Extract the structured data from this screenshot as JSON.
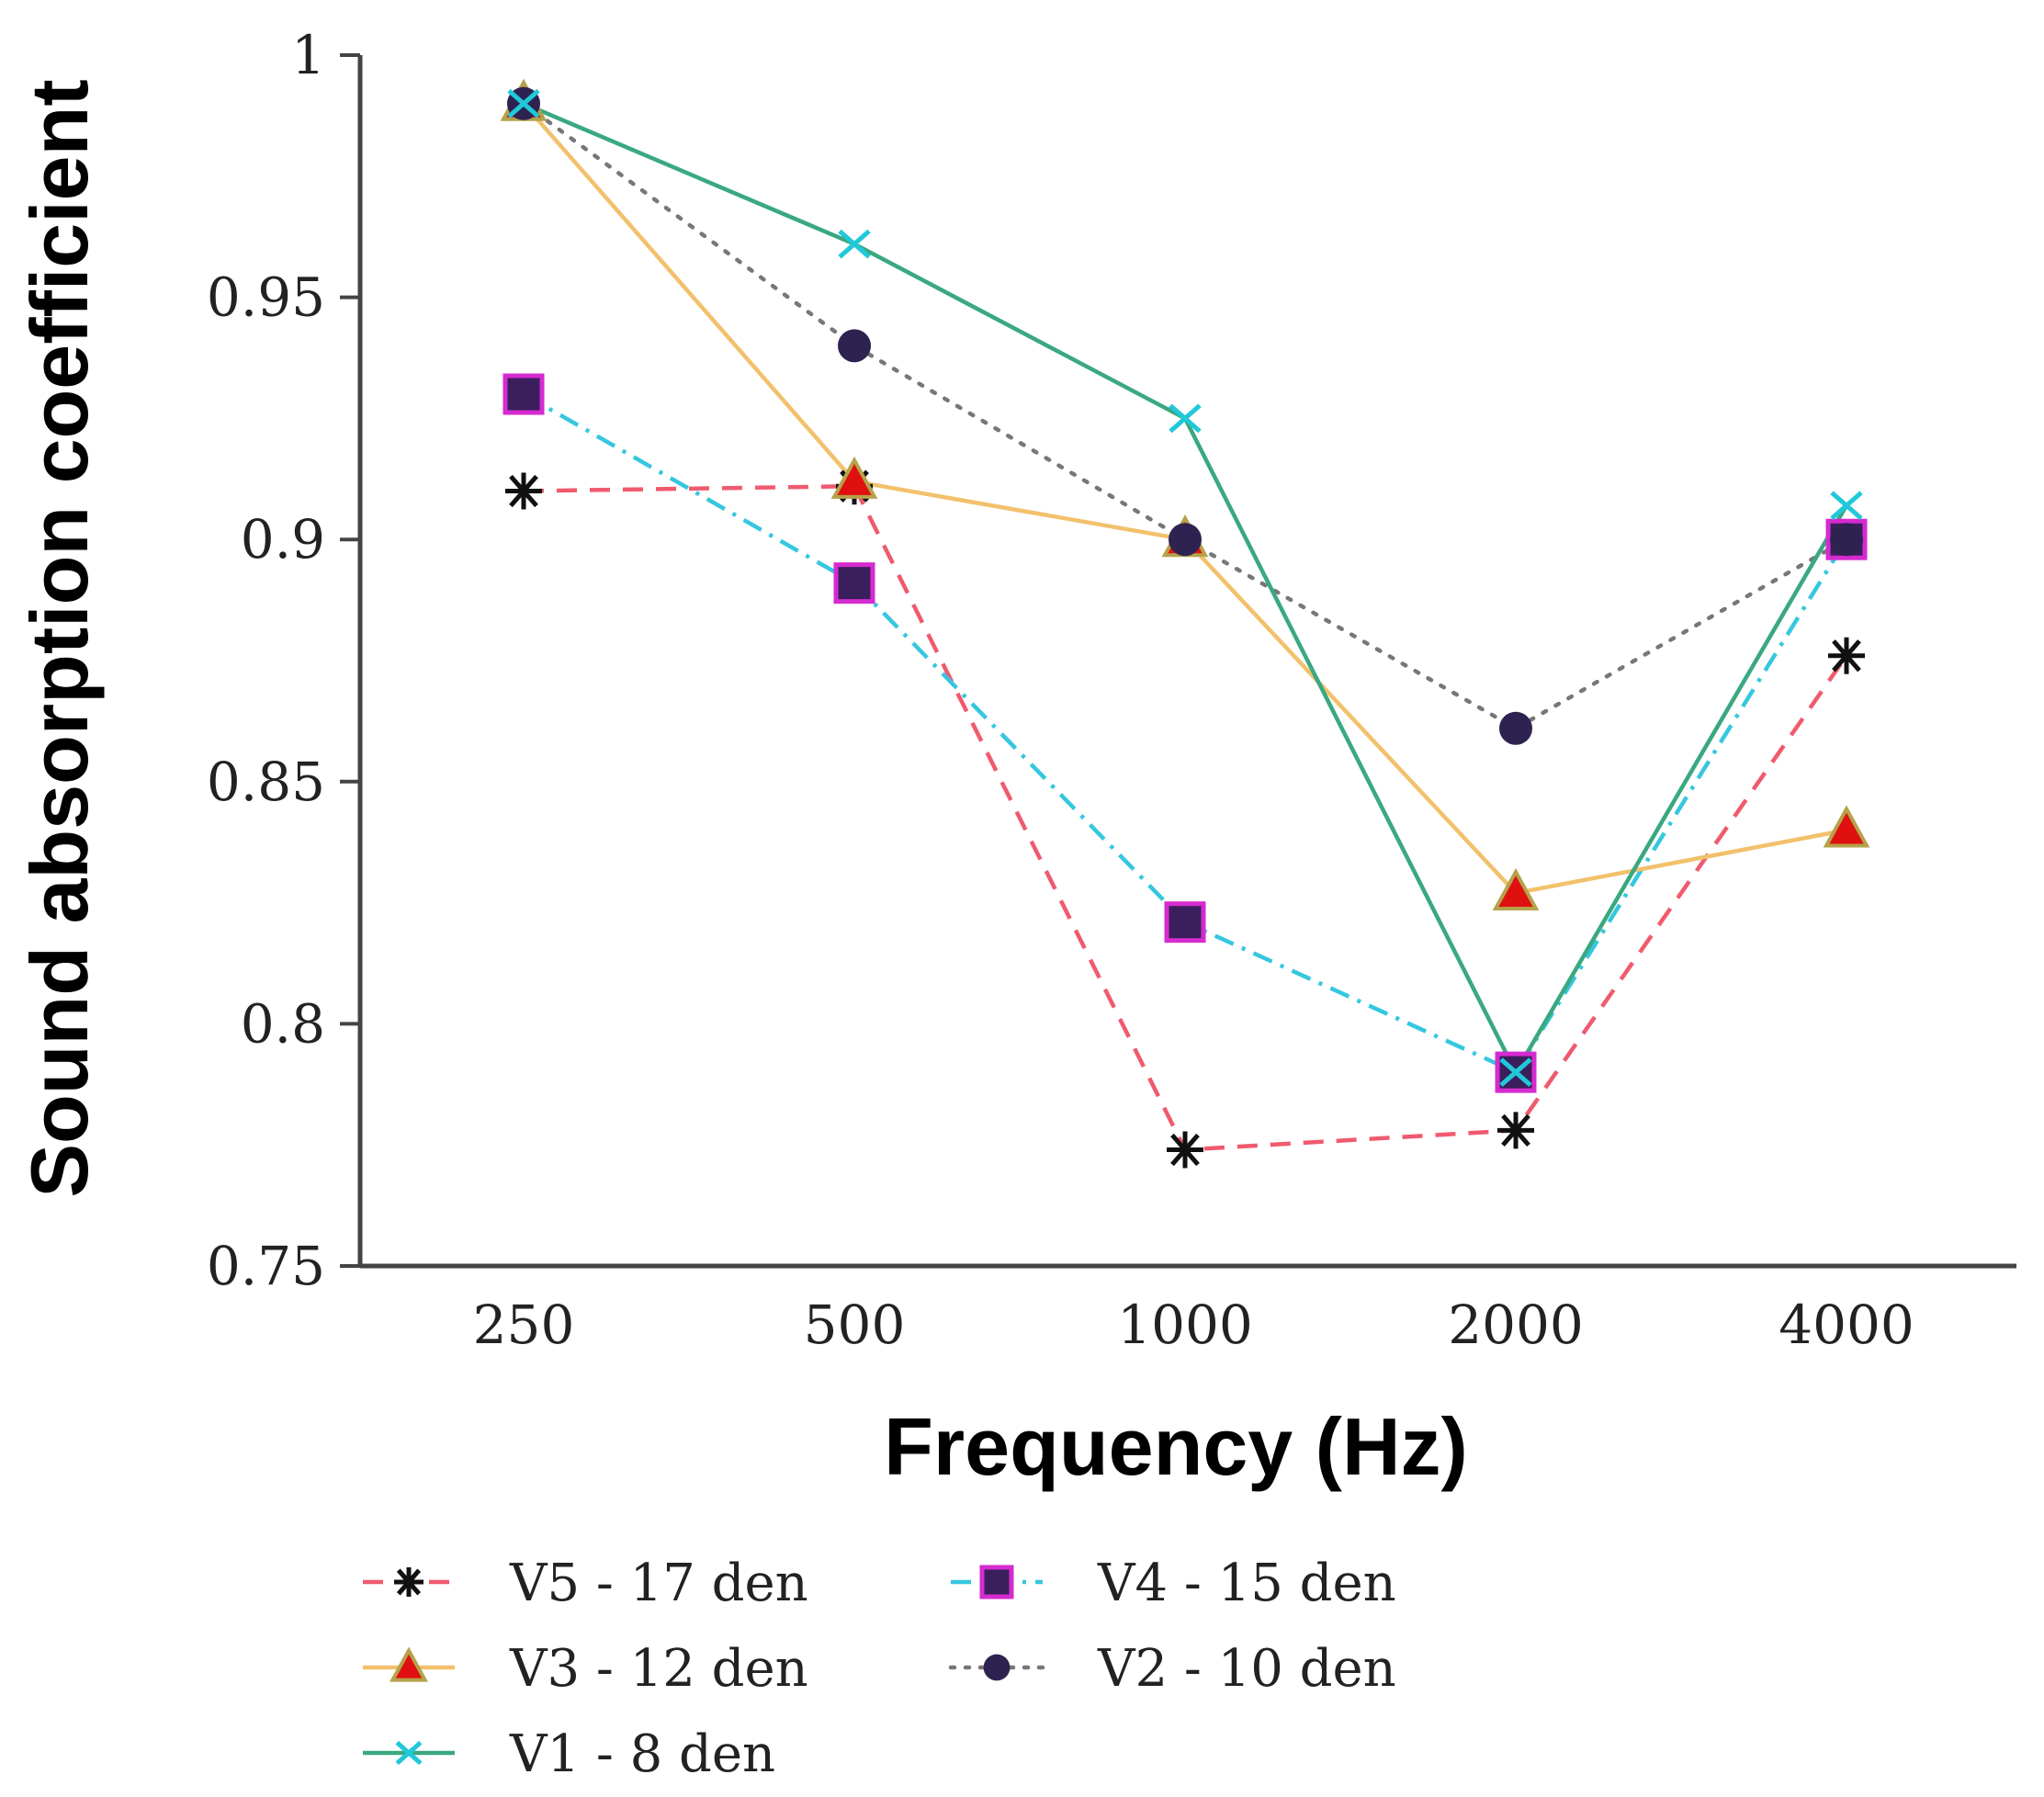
{
  "chart_data": {
    "type": "line",
    "title": "",
    "xlabel": "Frequency (Hz)",
    "ylabel": "Sound absorption coefficient",
    "categories": [
      "250",
      "500",
      "1000",
      "2000",
      "4000"
    ],
    "ylim": [
      0.75,
      1
    ],
    "yticks": [
      1,
      0.95,
      0.9,
      0.85,
      0.8,
      0.75
    ],
    "ytick_labels": [
      "1",
      "0.95",
      "0.9",
      "0.85",
      "0.8",
      "0.75"
    ],
    "legend_position": "bottom",
    "series": [
      {
        "name": "V5 - 17 den",
        "values": [
          0.91,
          0.911,
          0.774,
          0.778,
          0.876
        ],
        "color": "#f05a6e",
        "dash": "dashed",
        "marker": "star",
        "marker_color": "#111111"
      },
      {
        "name": "V4 - 15 den",
        "values": [
          0.93,
          0.891,
          0.821,
          0.79,
          0.9
        ],
        "color": "#35c7df",
        "dash": "dashdot",
        "marker": "square",
        "marker_color": "#3a1f5c",
        "marker_edge": "#d62bd0"
      },
      {
        "name": "V3 - 12 den",
        "values": [
          0.99,
          0.912,
          0.9,
          0.827,
          0.84
        ],
        "color": "#f2c16c",
        "dash": "solid",
        "marker": "triangle",
        "marker_color": "#e01010",
        "marker_edge": "#b5a24a"
      },
      {
        "name": "V2 - 10 den",
        "values": [
          0.99,
          0.94,
          0.9,
          0.861,
          0.9
        ],
        "color": "#777777",
        "dash": "dotted",
        "marker": "circle",
        "marker_color": "#2e2350"
      },
      {
        "name": "V1 - 8 den",
        "values": [
          0.99,
          0.961,
          0.925,
          0.79,
          0.907
        ],
        "color": "#3aa880",
        "dash": "solid",
        "marker": "x",
        "marker_color": "#20c8d8"
      }
    ]
  }
}
